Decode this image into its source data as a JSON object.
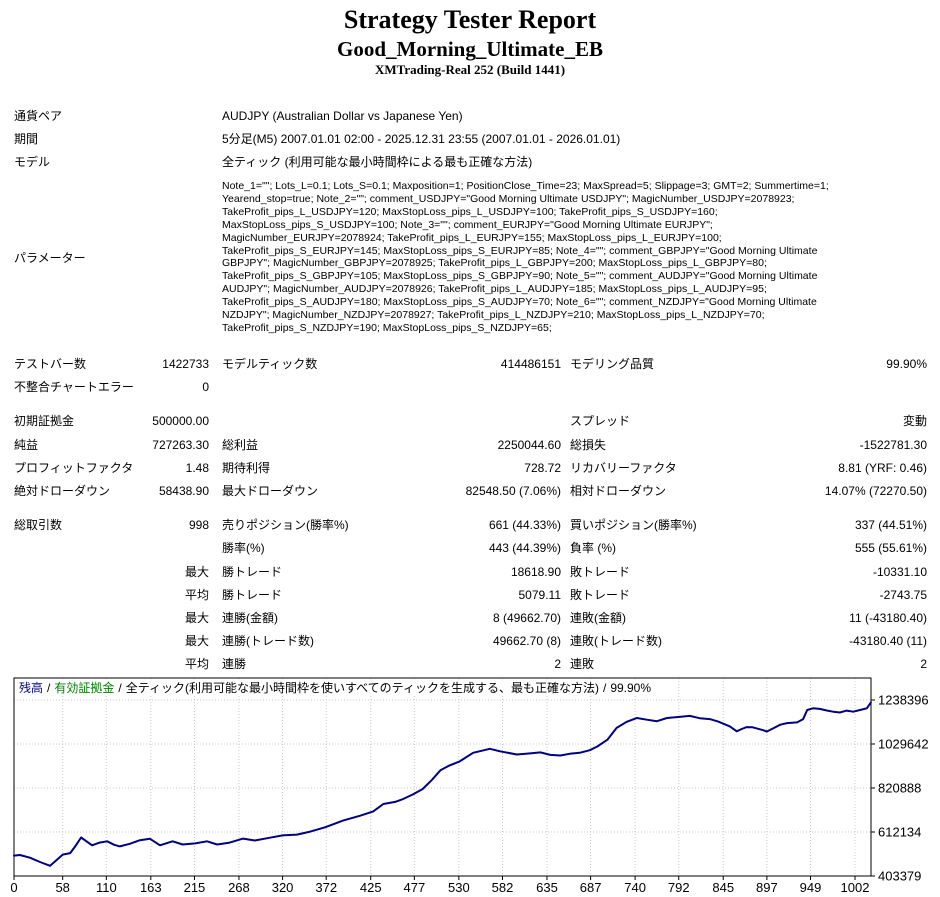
{
  "header": {
    "title": "Strategy Tester Report",
    "ea_name": "Good_Morning_Ultimate_EB",
    "server": "XMTrading-Real 252 (Build 1441)"
  },
  "info": {
    "rows": [
      {
        "label": "通貨ペア",
        "value": "AUDJPY (Australian Dollar vs Japanese Yen)"
      },
      {
        "label": "期間",
        "value": "5分足(M5) 2007.01.01 02:00 - 2025.12.31 23:55 (2007.01.01 - 2026.01.01)"
      },
      {
        "label": "モデル",
        "value": "全ティック (利用可能な最小時間枠による最も正確な方法)"
      }
    ],
    "parameters_label": "パラメーター",
    "parameter_lines": [
      "Note_1=\"\"; Lots_L=0.1; Lots_S=0.1; Maxposition=1; PositionClose_Time=23; MaxSpread=5; Slippage=3; GMT=2; Summertime=1;",
      "Yearend_stop=true; Note_2=\"\"; comment_USDJPY=\"Good Morning Ultimate USDJPY\"; MagicNumber_USDJPY=2078923;",
      "TakeProfit_pips_L_USDJPY=120; MaxStopLoss_pips_L_USDJPY=100; TakeProfit_pips_S_USDJPY=160;",
      "MaxStopLoss_pips_S_USDJPY=100; Note_3=\"\"; comment_EURJPY=\"Good Morning Ultimate EURJPY\";",
      "MagicNumber_EURJPY=2078924; TakeProfit_pips_L_EURJPY=155; MaxStopLoss_pips_L_EURJPY=100;",
      "TakeProfit_pips_S_EURJPY=145; MaxStopLoss_pips_S_EURJPY=85; Note_4=\"\"; comment_GBPJPY=\"Good Morning Ultimate",
      "GBPJPY\"; MagicNumber_GBPJPY=2078925; TakeProfit_pips_L_GBPJPY=200; MaxStopLoss_pips_L_GBPJPY=80;",
      "TakeProfit_pips_S_GBPJPY=105; MaxStopLoss_pips_S_GBPJPY=90; Note_5=\"\"; comment_AUDJPY=\"Good Morning Ultimate",
      "AUDJPY\"; MagicNumber_AUDJPY=2078926; TakeProfit_pips_L_AUDJPY=185; MaxStopLoss_pips_L_AUDJPY=95;",
      "TakeProfit_pips_S_AUDJPY=180; MaxStopLoss_pips_S_AUDJPY=70; Note_6=\"\"; comment_NZDJPY=\"Good Morning Ultimate",
      "NZDJPY\"; MagicNumber_NZDJPY=2078927; TakeProfit_pips_L_NZDJPY=210; MaxStopLoss_pips_L_NZDJPY=70;",
      "TakeProfit_pips_S_NZDJPY=190; MaxStopLoss_pips_S_NZDJPY=65;"
    ]
  },
  "stats": {
    "rows": [
      {
        "cells": [
          "テストバー数",
          "1422733",
          "モデルティック数",
          "414486151",
          "モデリング品質",
          "99.90%"
        ]
      },
      {
        "cells": [
          "不整合チャートエラー",
          "0",
          "",
          "",
          "",
          ""
        ]
      },
      {
        "cells": [
          "初期証拠金",
          "500000.00",
          "",
          "",
          "スプレッド",
          "変動"
        ],
        "gap": true
      },
      {
        "cells": [
          "純益",
          "727263.30",
          "総利益",
          "2250044.60",
          "総損失",
          "-1522781.30"
        ]
      },
      {
        "cells": [
          "プロフィットファクタ",
          "1.48",
          "期待利得",
          "728.72",
          "リカバリーファクタ",
          "8.81 (YRF: 0.46)"
        ]
      },
      {
        "cells": [
          "絶対ドローダウン",
          "58438.90",
          "最大ドローダウン",
          "82548.50 (7.06%)",
          "相対ドローダウン",
          "14.07% (72270.50)"
        ]
      },
      {
        "cells": [
          "総取引数",
          "998",
          "売りポジション(勝率%)",
          "661 (44.33%)",
          "買いポジション(勝率%)",
          "337 (44.51%)"
        ],
        "gap": true
      },
      {
        "cells": [
          "",
          "",
          "勝率(%)",
          "443 (44.39%)",
          "負率 (%)",
          "555 (55.61%)"
        ]
      },
      {
        "cells": [
          "",
          "最大",
          "勝トレード",
          "18618.90",
          "敗トレード",
          "-10331.10"
        ]
      },
      {
        "cells": [
          "",
          "平均",
          "勝トレード",
          "5079.11",
          "敗トレード",
          "-2743.75"
        ]
      },
      {
        "cells": [
          "",
          "最大",
          "連勝(金額)",
          "8 (49662.70)",
          "連敗(金額)",
          "11 (-43180.40)"
        ]
      },
      {
        "cells": [
          "",
          "最大",
          "連勝(トレード数)",
          "49662.70 (8)",
          "連敗(トレード数)",
          "-43180.40 (11)"
        ]
      },
      {
        "cells": [
          "",
          "平均",
          "連勝",
          "2",
          "連敗",
          "2"
        ]
      }
    ]
  },
  "chart_data": {
    "type": "line",
    "legend_parts": [
      {
        "label": "残高",
        "color": "#000080"
      },
      {
        "label": "有効証拠金",
        "color": "#008000"
      },
      {
        "label": "全ティック(利用可能な最小時間枠を使いすべてのティックを生成する、最も正確な方法)",
        "color": "#000000"
      },
      {
        "label": "99.90%",
        "color": "#000000"
      }
    ],
    "legend_separator": "/",
    "xlabel": "",
    "ylabel": "",
    "x_ticks": [
      0,
      58,
      110,
      163,
      215,
      268,
      320,
      372,
      425,
      477,
      530,
      582,
      635,
      687,
      740,
      792,
      845,
      897,
      949,
      1002
    ],
    "y_ticks": [
      1238396,
      1029642,
      820888,
      612134,
      403379
    ],
    "ylim": [
      403379,
      1238396
    ],
    "initial_deposit": 500000,
    "final_balance": 1227263.3,
    "line_color": "#000080",
    "grid_color": "#c8c8c8",
    "grid": true,
    "series": [
      {
        "name": "残高",
        "points": [
          [
            0,
            500000
          ],
          [
            7,
            503000
          ],
          [
            19,
            490000
          ],
          [
            31,
            470000
          ],
          [
            43,
            452000
          ],
          [
            51,
            480000
          ],
          [
            58,
            505000
          ],
          [
            67,
            512000
          ],
          [
            74,
            550000
          ],
          [
            80,
            586000
          ],
          [
            93,
            549000
          ],
          [
            102,
            562000
          ],
          [
            111,
            568000
          ],
          [
            119,
            552000
          ],
          [
            126,
            544000
          ],
          [
            138,
            556000
          ],
          [
            150,
            573000
          ],
          [
            162,
            580000
          ],
          [
            174,
            549000
          ],
          [
            189,
            568000
          ],
          [
            201,
            553000
          ],
          [
            216,
            558000
          ],
          [
            230,
            568000
          ],
          [
            242,
            553000
          ],
          [
            257,
            562000
          ],
          [
            273,
            581000
          ],
          [
            287,
            572000
          ],
          [
            305,
            585000
          ],
          [
            320,
            596000
          ],
          [
            337,
            600000
          ],
          [
            353,
            614000
          ],
          [
            371,
            635000
          ],
          [
            392,
            666000
          ],
          [
            412,
            689000
          ],
          [
            428,
            710000
          ],
          [
            440,
            745000
          ],
          [
            454,
            755000
          ],
          [
            464,
            769000
          ],
          [
            475,
            790000
          ],
          [
            487,
            816000
          ],
          [
            498,
            860000
          ],
          [
            508,
            905000
          ],
          [
            519,
            928000
          ],
          [
            531,
            947000
          ],
          [
            547,
            988000
          ],
          [
            567,
            1007000
          ],
          [
            579,
            995000
          ],
          [
            599,
            980000
          ],
          [
            615,
            985000
          ],
          [
            627,
            990000
          ],
          [
            639,
            978000
          ],
          [
            651,
            975000
          ],
          [
            662,
            983000
          ],
          [
            674,
            988000
          ],
          [
            686,
            1000000
          ],
          [
            695,
            1018000
          ],
          [
            707,
            1050000
          ],
          [
            718,
            1106000
          ],
          [
            730,
            1135000
          ],
          [
            742,
            1153000
          ],
          [
            754,
            1145000
          ],
          [
            766,
            1138000
          ],
          [
            778,
            1153000
          ],
          [
            793,
            1158000
          ],
          [
            805,
            1163000
          ],
          [
            817,
            1152000
          ],
          [
            829,
            1148000
          ],
          [
            839,
            1136000
          ],
          [
            853,
            1113000
          ],
          [
            861,
            1090000
          ],
          [
            867,
            1101000
          ],
          [
            873,
            1110000
          ],
          [
            880,
            1109000
          ],
          [
            891,
            1097000
          ],
          [
            897,
            1089000
          ],
          [
            903,
            1101000
          ],
          [
            913,
            1121000
          ],
          [
            921,
            1129000
          ],
          [
            933,
            1132000
          ],
          [
            940,
            1147000
          ],
          [
            945,
            1191000
          ],
          [
            952,
            1199000
          ],
          [
            960,
            1196000
          ],
          [
            969,
            1188000
          ],
          [
            976,
            1183000
          ],
          [
            984,
            1179000
          ],
          [
            992,
            1188000
          ],
          [
            1000,
            1183000
          ],
          [
            1008,
            1191000
          ],
          [
            1016,
            1199000
          ],
          [
            1021,
            1227000
          ]
        ]
      }
    ]
  }
}
